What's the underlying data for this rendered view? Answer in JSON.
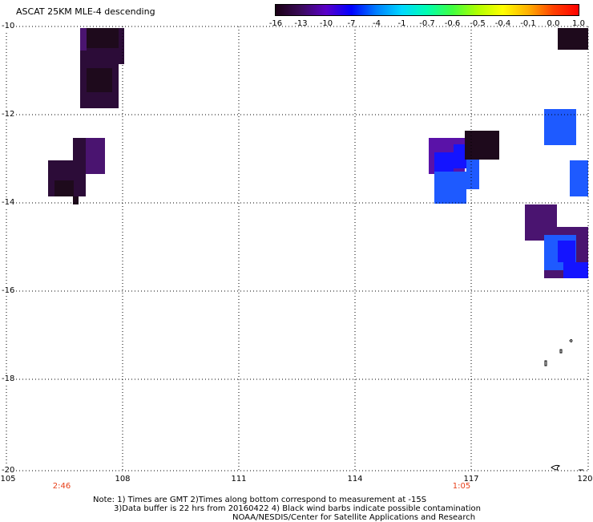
{
  "title": "ASCAT 25KM MLE-4 descending",
  "colorbar": {
    "labels": [
      "-16",
      "-13",
      "-10",
      "-7",
      "-4",
      "-1",
      "-0.7",
      "-0.6",
      "-0.5",
      "-0.4",
      "-0.1",
      "0.0",
      "1.0"
    ],
    "colors": [
      "#1a0014",
      "#3a0a5a",
      "#5a00c8",
      "#0000ff",
      "#0080ff",
      "#00d8ff",
      "#00ffb0",
      "#40ff40",
      "#b0ff00",
      "#ffff00",
      "#ffb000",
      "#ff4000",
      "#ff0000"
    ]
  },
  "axes": {
    "x_labels": [
      "105",
      "108",
      "111",
      "114",
      "117",
      "120"
    ],
    "y_labels": [
      "-10",
      "-12",
      "-14",
      "-16",
      "-18",
      "-20"
    ]
  },
  "time_labels": [
    "2:46",
    "1:05"
  ],
  "notes": {
    "line1": "Note: 1) Times are GMT 2)Times along bottom correspond to measurement at -15S",
    "line2": "3)Data buffer is 22 hrs from 20160422 4) Black wind barbs indicate possible contamination",
    "line3": "NOAA/NESDIS/Center for Satellite Applications and Research"
  },
  "data_patches": {
    "colors": {
      "dark": "#1e0a1c",
      "darkpurple": "#2c0c38",
      "purple": "#4a1470",
      "violet": "#5a12a8",
      "blue": "#1414ff",
      "lightblue": "#1e5aff",
      "skyblue": "#2070ff"
    }
  }
}
